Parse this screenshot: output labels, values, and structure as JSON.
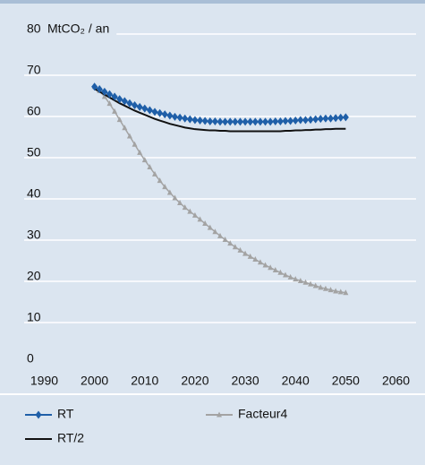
{
  "chart_data": {
    "type": "line",
    "ylabel": "MtCO₂ / an",
    "x": [
      2000,
      2001,
      2002,
      2003,
      2004,
      2005,
      2006,
      2007,
      2008,
      2009,
      2010,
      2011,
      2012,
      2013,
      2014,
      2015,
      2016,
      2017,
      2018,
      2019,
      2020,
      2021,
      2022,
      2023,
      2024,
      2025,
      2026,
      2027,
      2028,
      2029,
      2030,
      2031,
      2032,
      2033,
      2034,
      2035,
      2036,
      2037,
      2038,
      2039,
      2040,
      2041,
      2042,
      2043,
      2044,
      2045,
      2046,
      2047,
      2048,
      2049,
      2050
    ],
    "series": [
      {
        "name": "RT",
        "color": "#1f5fa8",
        "marker": "diamond",
        "values": [
          67,
          66.4,
          65.8,
          65.2,
          64.6,
          64.0,
          63.5,
          63,
          62.5,
          62.1,
          61.7,
          61.3,
          60.9,
          60.6,
          60.3,
          60.0,
          59.7,
          59.5,
          59.3,
          59.1,
          58.9,
          58.8,
          58.7,
          58.6,
          58.6,
          58.5,
          58.5,
          58.5,
          58.5,
          58.5,
          58.5,
          58.5,
          58.5,
          58.5,
          58.5,
          58.5,
          58.6,
          58.6,
          58.7,
          58.7,
          58.8,
          58.9,
          58.9,
          59,
          59.1,
          59.2,
          59.3,
          59.3,
          59.4,
          59.5,
          59.6
        ]
      },
      {
        "name": "Facteur4",
        "color": "#a3a3a3",
        "marker": "triangle",
        "values": [
          67,
          66,
          64.6,
          62.9,
          61,
          59,
          57,
          55,
          53,
          51,
          49.2,
          47.5,
          45.8,
          44.2,
          42.7,
          41.3,
          40,
          38.8,
          37.7,
          36.7,
          35.8,
          34.8,
          33.8,
          32.8,
          31.8,
          30.8,
          29.9,
          29,
          28.1,
          27.3,
          26.5,
          25.8,
          25.1,
          24.4,
          23.7,
          23.1,
          22.5,
          21.9,
          21.3,
          20.8,
          20.3,
          19.9,
          19.5,
          19.1,
          18.7,
          18.3,
          18,
          17.7,
          17.4,
          17.2,
          17.0
        ]
      },
      {
        "name": "RT/2",
        "color": "#111111",
        "marker": "none",
        "values": [
          66.5,
          65.8,
          65.1,
          64.4,
          63.7,
          63,
          62.4,
          61.8,
          61.2,
          60.7,
          60.2,
          59.7,
          59.2,
          58.8,
          58.4,
          58,
          57.7,
          57.4,
          57.1,
          56.9,
          56.7,
          56.6,
          56.5,
          56.4,
          56.4,
          56.3,
          56.3,
          56.2,
          56.2,
          56.2,
          56.2,
          56.2,
          56.2,
          56.2,
          56.2,
          56.2,
          56.2,
          56.2,
          56.3,
          56.3,
          56.4,
          56.4,
          56.5,
          56.5,
          56.6,
          56.6,
          56.7,
          56.7,
          56.8,
          56.8,
          56.8
        ]
      }
    ],
    "xlim": [
      1986,
      2064
    ],
    "xticks": [
      1990,
      2000,
      2010,
      2020,
      2030,
      2040,
      2050,
      2060
    ],
    "ylim": [
      0,
      80
    ],
    "yticks": [
      0,
      10,
      20,
      30,
      40,
      50,
      60,
      70,
      80
    ],
    "grid": true,
    "legend": "bottom"
  }
}
